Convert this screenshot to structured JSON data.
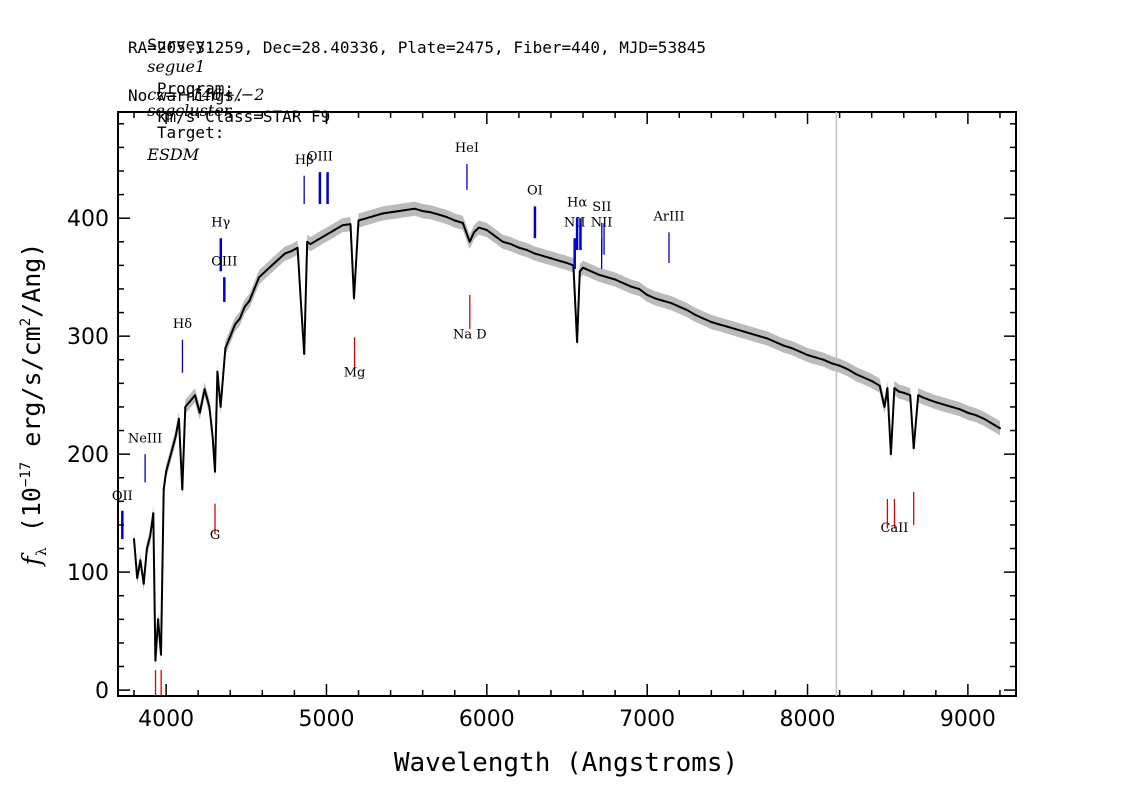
{
  "header": {
    "line1": {
      "survey_label": "Survey:",
      "survey": "segue1",
      "program_label": " Program:",
      "program": "segcluster",
      "target_label": " Target:",
      "target": "ESDM"
    },
    "line2": "RA=205.31259, Dec=28.40336, Plate=2475, Fiber=440, MJD=53845",
    "line3": {
      "cz": "cz=−146+/−2",
      "rest": " km/s Class=STAR F9"
    },
    "line4": "No warnings."
  },
  "chart_data": {
    "type": "line",
    "xlabel": "Wavelength (Angstroms)",
    "ylabel": "f_λ (10^-17 erg/s/cm^2/Ang)",
    "xlim": [
      3700,
      9300
    ],
    "ylim": [
      -5,
      490
    ],
    "x_ticks": [
      4000,
      5000,
      6000,
      7000,
      8000,
      9000
    ],
    "y_ticks": [
      0,
      100,
      200,
      300,
      400
    ],
    "x": [
      3800,
      3820,
      3840,
      3860,
      3880,
      3900,
      3920,
      3933,
      3950,
      3968,
      3985,
      4000,
      4030,
      4060,
      4080,
      4101,
      4120,
      4150,
      4180,
      4210,
      4240,
      4270,
      4290,
      4305,
      4320,
      4340,
      4370,
      4400,
      4430,
      4460,
      4490,
      4520,
      4550,
      4580,
      4620,
      4660,
      4700,
      4740,
      4780,
      4820,
      4840,
      4861,
      4880,
      4900,
      4950,
      5000,
      5050,
      5100,
      5150,
      5172,
      5200,
      5250,
      5300,
      5350,
      5400,
      5450,
      5500,
      5550,
      5600,
      5650,
      5700,
      5750,
      5800,
      5850,
      5893,
      5920,
      5950,
      6000,
      6050,
      6100,
      6150,
      6200,
      6250,
      6300,
      6350,
      6400,
      6450,
      6500,
      6540,
      6563,
      6580,
      6600,
      6650,
      6700,
      6750,
      6800,
      6850,
      6900,
      6950,
      7000,
      7050,
      7100,
      7150,
      7200,
      7250,
      7300,
      7350,
      7400,
      7450,
      7500,
      7550,
      7600,
      7650,
      7700,
      7750,
      7800,
      7850,
      7900,
      7950,
      8000,
      8050,
      8100,
      8150,
      8200,
      8250,
      8300,
      8350,
      8400,
      8450,
      8480,
      8498,
      8520,
      8542,
      8570,
      8600,
      8640,
      8662,
      8690,
      8720,
      8760,
      8800,
      8850,
      8900,
      8950,
      9000,
      9050,
      9100,
      9150,
      9200
    ],
    "values": [
      128,
      95,
      110,
      90,
      120,
      130,
      150,
      25,
      60,
      30,
      170,
      185,
      200,
      215,
      230,
      170,
      240,
      245,
      250,
      235,
      255,
      240,
      215,
      185,
      270,
      240,
      290,
      300,
      310,
      315,
      325,
      330,
      340,
      350,
      355,
      360,
      365,
      370,
      372,
      375,
      330,
      285,
      380,
      378,
      382,
      386,
      390,
      394,
      395,
      332,
      398,
      400,
      402,
      404,
      405,
      406,
      407,
      408,
      406,
      405,
      403,
      401,
      398,
      396,
      380,
      388,
      392,
      390,
      385,
      380,
      378,
      375,
      373,
      370,
      368,
      366,
      364,
      362,
      360,
      295,
      355,
      358,
      355,
      352,
      350,
      348,
      345,
      342,
      340,
      335,
      332,
      330,
      328,
      325,
      322,
      318,
      315,
      312,
      310,
      308,
      306,
      304,
      302,
      300,
      298,
      295,
      292,
      290,
      287,
      284,
      282,
      280,
      277,
      275,
      272,
      268,
      265,
      262,
      258,
      240,
      256,
      200,
      256,
      253,
      252,
      250,
      205,
      250,
      248,
      246,
      244,
      242,
      240,
      238,
      235,
      233,
      230,
      226,
      222
    ]
  },
  "annotations": {
    "emission_lines": [
      {
        "label": "OII",
        "wave": 3727,
        "y_label": 161,
        "y_top": 152,
        "y_bottom": 128,
        "thick": true
      },
      {
        "label": "NeIII",
        "wave": 3869,
        "y_label": 210,
        "y_top": 200,
        "y_bottom": 176,
        "thick": false
      },
      {
        "label": "Hδ",
        "wave": 4102,
        "y_label": 307,
        "y_top": 297,
        "y_bottom": 269,
        "thick": false
      },
      {
        "label": "Hγ",
        "wave": 4341,
        "y_label": 393,
        "y_top": 383,
        "y_bottom": 355,
        "thick": true
      },
      {
        "label": "OIII",
        "wave": 4363,
        "y_label": 360,
        "y_top": 350,
        "y_bottom": 329,
        "thick": true
      },
      {
        "label": "Hβ",
        "wave": 4861,
        "y_label": 446,
        "y_top": 436,
        "y_bottom": 412,
        "thick": false
      },
      {
        "label": "OIII",
        "wave": 4959,
        "y_label": 449,
        "y_top": 439,
        "y_bottom": 412,
        "thick": true
      },
      {
        "label": "",
        "wave": 5007,
        "y_label": 0,
        "y_top": 439,
        "y_bottom": 412,
        "thick": true
      },
      {
        "label": "HeI",
        "wave": 5876,
        "y_label": 456,
        "y_top": 446,
        "y_bottom": 424,
        "thick": false
      },
      {
        "label": "OI",
        "wave": 6300,
        "y_label": 420,
        "y_top": 410,
        "y_bottom": 383,
        "thick": true
      },
      {
        "label": "NII",
        "wave": 6548,
        "y_label": 393,
        "y_top": 383,
        "y_bottom": 357,
        "thick": true
      },
      {
        "label": "Hα",
        "wave": 6563,
        "y_label": 410,
        "y_top": 400,
        "y_bottom": 373,
        "thick": true
      },
      {
        "label": "",
        "wave": 6584,
        "y_label": 0,
        "y_top": 400,
        "y_bottom": 373,
        "thick": true
      },
      {
        "label": "SII",
        "wave": 6717,
        "y_label": 406,
        "y_top": 396,
        "y_bottom": 369,
        "thick": false
      },
      {
        "label": "",
        "wave": 6731,
        "y_label": 0,
        "y_top": 396,
        "y_bottom": 369,
        "thick": false
      },
      {
        "label": "NII",
        "wave": 6716,
        "y_label": 393,
        "y_top": 383,
        "y_bottom": 357,
        "thick": false
      },
      {
        "label": "ArIII",
        "wave": 7136,
        "y_label": 398,
        "y_top": 388,
        "y_bottom": 362,
        "thick": false
      }
    ],
    "absorption_lines": [
      {
        "label": "",
        "wave": 3934,
        "y_label": 0,
        "y_top": 17,
        "y_bottom": -5
      },
      {
        "label": "",
        "wave": 3969,
        "y_label": 0,
        "y_top": 17,
        "y_bottom": -5
      },
      {
        "label": "G",
        "wave": 4305,
        "y_label": 128,
        "y_top": 158,
        "y_bottom": 132
      },
      {
        "label": "Mg",
        "wave": 5175,
        "y_label": 266,
        "y_top": 299,
        "y_bottom": 272
      },
      {
        "label": "Na D",
        "wave": 5894,
        "y_label": 298,
        "y_top": 335,
        "y_bottom": 306
      },
      {
        "label": "CaII",
        "wave": 8542,
        "y_label": 134,
        "y_top": 162,
        "y_bottom": 137
      },
      {
        "label": "",
        "wave": 8498,
        "y_label": 0,
        "y_top": 162,
        "y_bottom": 137
      },
      {
        "label": "",
        "wave": 8662,
        "y_label": 0,
        "y_top": 168,
        "y_bottom": 140
      }
    ]
  },
  "colors": {
    "emission": "#0000cc",
    "absorption": "#dd0000",
    "spectrum": "#000000",
    "error_band": "#bbbbbb",
    "sky_line": "#c0c0c0"
  }
}
